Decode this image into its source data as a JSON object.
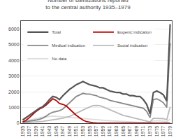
{
  "chart_data": {
    "type": "line",
    "title": "Number of sterilizations reported to the central authority 1935–1979",
    "x": [
      1935,
      1936,
      1937,
      1938,
      1939,
      1940,
      1941,
      1942,
      1943,
      1944,
      1945,
      1946,
      1947,
      1948,
      1949,
      1950,
      1951,
      1952,
      1953,
      1954,
      1955,
      1956,
      1957,
      1958,
      1959,
      1960,
      1961,
      1962,
      1963,
      1964,
      1965,
      1966,
      1967,
      1968,
      1969,
      1970,
      1971,
      1972,
      1973,
      1974,
      1975,
      1976,
      1977,
      1978,
      1979
    ],
    "xlim": [
      1934.5,
      1979.5
    ],
    "xticks": [
      1935,
      1937,
      1939,
      1941,
      1943,
      1945,
      1947,
      1949,
      1951,
      1953,
      1955,
      1957,
      1959,
      1961,
      1963,
      1965,
      1967,
      1969,
      1971,
      1973,
      1975,
      1977,
      1979
    ],
    "ylim": [
      0,
      6500
    ],
    "yticks": [
      0,
      1000,
      2000,
      3000,
      4000,
      5000,
      6000
    ],
    "grid": true,
    "legend": "upper left",
    "series": [
      {
        "name": "No data",
        "color": "#dddddd",
        "values": [
          100,
          150,
          200,
          250,
          300,
          350,
          380,
          400,
          430,
          450,
          440,
          420,
          400,
          380,
          360,
          340,
          320,
          310,
          290,
          270,
          250,
          230,
          215,
          200,
          185,
          170,
          155,
          140,
          125,
          110,
          100,
          90,
          80,
          70,
          60,
          50,
          45,
          40,
          30,
          150,
          160,
          150,
          130,
          90,
          260
        ]
      },
      {
        "name": "Social indication",
        "color": "#bbbbbb",
        "values": [
          20,
          30,
          40,
          60,
          80,
          100,
          120,
          150,
          180,
          200,
          230,
          270,
          320,
          380,
          430,
          530,
          640,
          730,
          830,
          940,
          1030,
          1120,
          1130,
          1120,
          1040,
          950,
          850,
          750,
          650,
          560,
          500,
          450,
          400,
          350,
          310,
          260,
          210,
          160,
          80,
          320,
          320,
          310,
          290,
          220,
          1050
        ]
      },
      {
        "name": "Medical indication",
        "color": "#888888",
        "values": [
          60,
          90,
          120,
          150,
          200,
          250,
          320,
          450,
          600,
          700,
          750,
          800,
          900,
          1100,
          1300,
          1500,
          1700,
          1800,
          1900,
          1850,
          1850,
          1800,
          1750,
          1650,
          1600,
          1550,
          1450,
          1400,
          1350,
          1300,
          1250,
          1200,
          1150,
          1100,
          1050,
          1000,
          950,
          750,
          350,
          1500,
          1550,
          1450,
          1300,
          1000,
          5100
        ]
      },
      {
        "name": "Eugenic indication",
        "color": "#bb0000",
        "values": [
          80,
          180,
          350,
          550,
          750,
          900,
          1000,
          1150,
          1350,
          1550,
          1450,
          1250,
          1200,
          1100,
          900,
          700,
          500,
          350,
          200,
          100,
          50,
          30,
          20,
          10,
          5,
          5,
          5,
          5,
          5,
          5,
          5,
          5,
          5,
          5,
          5,
          5,
          5,
          5,
          5,
          5,
          5,
          5,
          5,
          5,
          5
        ]
      },
      {
        "name": "Total",
        "color": "#555555",
        "values": [
          200,
          350,
          500,
          650,
          800,
          950,
          1050,
          1250,
          1500,
          1700,
          1650,
          1500,
          1750,
          1950,
          2150,
          2300,
          2450,
          2550,
          2650,
          2550,
          2450,
          2400,
          2350,
          2250,
          2250,
          2150,
          2050,
          2000,
          1950,
          1950,
          1850,
          1850,
          1750,
          1750,
          1700,
          1700,
          1500,
          1200,
          600,
          1950,
          2050,
          1950,
          1800,
          1400,
          6300
        ]
      }
    ]
  }
}
